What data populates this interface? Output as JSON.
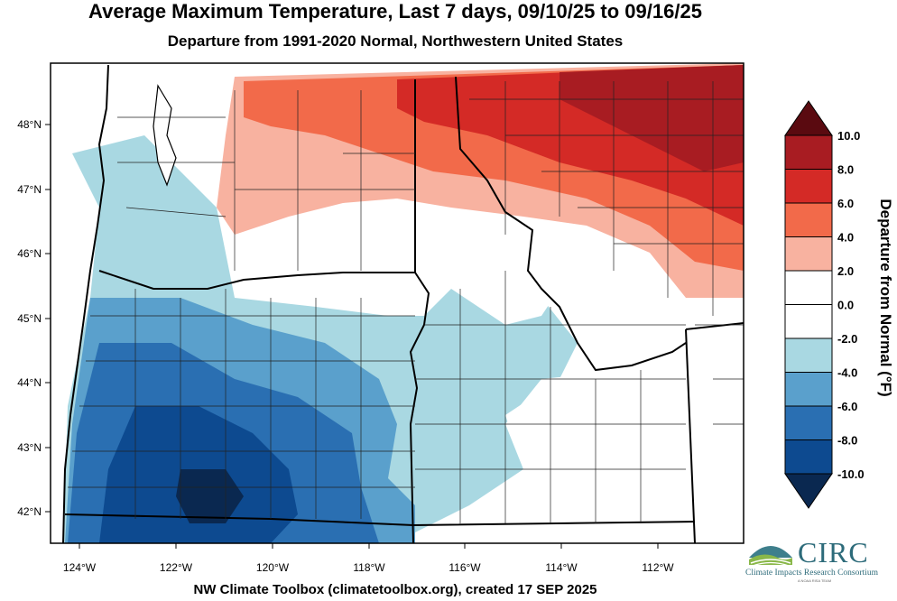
{
  "title": "Average Maximum Temperature, Last 7 days, 09/10/25 to 09/16/25",
  "subtitle": "Departure from 1991-2020 Normal, Northwestern United States",
  "footer": "NW Climate Toolbox (climatetoolbox.org), created 17 SEP 2025",
  "map": {
    "lon_labels": [
      "124°W",
      "122°W",
      "120°W",
      "118°W",
      "116°W",
      "114°W",
      "112°W"
    ],
    "lon_values": [
      -124,
      -122,
      -120,
      -118,
      -116,
      -114,
      -112
    ],
    "lat_labels": [
      "48°N",
      "47°N",
      "46°N",
      "45°N",
      "44°N",
      "43°N",
      "42°N"
    ],
    "lat_values": [
      48,
      47,
      46,
      45,
      44,
      43,
      42
    ],
    "extent": {
      "lon_min": -124.6,
      "lon_max": -110.4,
      "lat_min": 41.5,
      "lat_max": 49.0
    }
  },
  "colorbar": {
    "title": "Departure from Normal (°F)",
    "labels": [
      "10.0",
      "8.0",
      "6.0",
      "4.0",
      "2.0",
      "0.0",
      "-2.0",
      "-4.0",
      "-6.0",
      "-8.0",
      "-10.0"
    ],
    "colors": [
      "#5a0a10",
      "#a81c22",
      "#d42a26",
      "#f26a4a",
      "#f8b2a0",
      "#ffffff",
      "#ffffff",
      "#a9d8e2",
      "#5aa0cc",
      "#2a6fb2",
      "#0d4a90",
      "#0a2850"
    ]
  },
  "logo": {
    "name": "CIRC",
    "full": "Climate Impacts Research Consortium",
    "tag": "A NOAA RISA TEAM"
  }
}
